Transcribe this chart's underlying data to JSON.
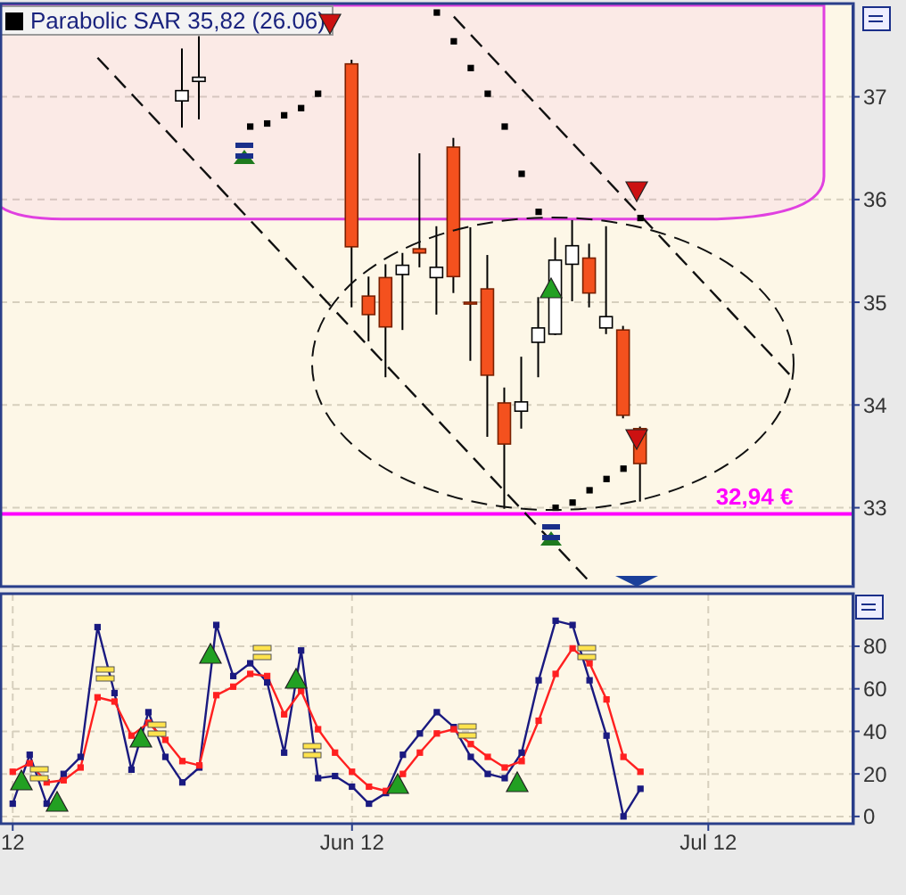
{
  "chart_data": [
    {
      "type": "candlestick",
      "categories": [
        null,
        null,
        null,
        null,
        null,
        null,
        null,
        null,
        null,
        null,
        null,
        null,
        null,
        null,
        null,
        null,
        null,
        null,
        null,
        null,
        null,
        null,
        null,
        null,
        null,
        null,
        null,
        null,
        null,
        null,
        null,
        null,
        null,
        null,
        null,
        null,
        null,
        null,
        null,
        null,
        null,
        null,
        null,
        null,
        null,
        null,
        null,
        null,
        null,
        null
      ],
      "ohlc": [
        null,
        null,
        null,
        null,
        null,
        null,
        null,
        null,
        null,
        null,
        [
          36.96,
          37.47,
          36.7,
          37.06
        ],
        [
          37.15,
          37.59,
          36.78,
          37.19
        ],
        null,
        null,
        null,
        null,
        null,
        null,
        null,
        null,
        [
          37.32,
          37.36,
          34.95,
          35.54
        ],
        [
          35.06,
          35.25,
          34.62,
          34.88
        ],
        [
          35.24,
          35.37,
          34.27,
          34.76
        ],
        [
          35.27,
          35.48,
          34.73,
          35.36
        ],
        [
          35.52,
          36.45,
          35.34,
          35.48
        ],
        [
          35.24,
          35.74,
          34.88,
          35.34
        ],
        [
          36.51,
          36.6,
          35.09,
          35.25
        ],
        [
          35.0,
          35.73,
          34.43,
          35.0
        ],
        [
          35.13,
          35.46,
          33.69,
          34.29
        ],
        [
          34.02,
          34.17,
          32.99,
          33.62
        ],
        [
          33.94,
          34.47,
          33.77,
          34.03
        ],
        [
          34.61,
          35.05,
          34.27,
          34.75
        ],
        [
          34.69,
          35.63,
          34.68,
          35.41
        ],
        [
          35.37,
          35.8,
          35.01,
          35.55
        ],
        [
          35.43,
          35.57,
          34.95,
          35.09
        ],
        [
          34.75,
          35.74,
          34.69,
          34.86
        ],
        [
          34.73,
          34.77,
          33.87,
          33.9
        ],
        [
          33.77,
          33.79,
          33.06,
          33.43
        ],
        null,
        null,
        null,
        null,
        null,
        null,
        null,
        null,
        null,
        null,
        null,
        null
      ],
      "series": [
        {
          "name": "Parabolic SAR 35,82 (26.06)",
          "type": "scatter",
          "color": "#000000",
          "marker": "square",
          "values": [
            null,
            null,
            null,
            null,
            null,
            null,
            null,
            null,
            null,
            null,
            null,
            null,
            null,
            null,
            36.71,
            36.74,
            36.82,
            36.89,
            37.03,
            null,
            null,
            null,
            null,
            null,
            null,
            37.82,
            37.54,
            37.28,
            37.03,
            36.71,
            36.25,
            35.88,
            33.0,
            33.05,
            33.17,
            33.28,
            33.38,
            35.82,
            null,
            null,
            null,
            null,
            null,
            null,
            null,
            null,
            null,
            null,
            null,
            null
          ]
        },
        {
          "type": "line",
          "color": "#111111",
          "line_style": "dashed",
          "values": [
            null,
            null,
            null,
            null,
            null,
            37.38,
            null,
            null,
            null,
            null,
            null,
            null,
            null,
            null,
            null,
            null,
            null,
            null,
            null,
            null,
            null,
            null,
            null,
            null,
            null,
            null,
            null,
            null,
            null,
            null,
            null,
            null,
            null,
            null,
            32.28,
            null,
            null,
            null,
            null,
            null,
            null,
            null,
            null,
            null,
            null,
            null,
            null,
            null,
            null,
            null
          ]
        },
        {
          "type": "line",
          "color": "#111111",
          "line_style": "dashed",
          "values": [
            null,
            null,
            null,
            null,
            null,
            null,
            null,
            null,
            null,
            null,
            null,
            null,
            null,
            null,
            null,
            null,
            null,
            null,
            null,
            null,
            null,
            null,
            null,
            null,
            null,
            null,
            37.78,
            null,
            null,
            null,
            null,
            null,
            null,
            null,
            null,
            null,
            null,
            null,
            null,
            null,
            null,
            null,
            null,
            null,
            null,
            null,
            34.26,
            null,
            null,
            null
          ]
        }
      ],
      "bands": [
        {
          "axis": "y",
          "from": 35.81,
          "to": 37.89,
          "color": "#e040e0"
        }
      ],
      "ylim": [
        32.25,
        37.89
      ],
      "yticks": [
        33,
        34,
        35,
        36,
        37
      ],
      "tick_labels": "y",
      "grid": "y",
      "legend": "top left",
      "ref_lines": [
        {
          "axis": "y",
          "value": 32.94,
          "label": "32,94 €",
          "color": "#ff00ff"
        }
      ]
    },
    {
      "type": "line",
      "categories": [
        "12",
        null,
        null,
        null,
        null,
        null,
        null,
        null,
        null,
        null,
        null,
        null,
        null,
        null,
        null,
        null,
        null,
        null,
        null,
        null,
        "Jun 12",
        null,
        null,
        null,
        null,
        null,
        null,
        null,
        null,
        null,
        null,
        null,
        null,
        null,
        null,
        null,
        null,
        null,
        null,
        null,
        null,
        "Jul 12",
        null,
        null,
        null,
        null,
        null,
        null,
        null,
        null
      ],
      "series": [
        {
          "color": "#1a1a80",
          "values": [
            6,
            29,
            6,
            20,
            28,
            89,
            58,
            22,
            49,
            28,
            16,
            23,
            90,
            66,
            72,
            63,
            30,
            78,
            18,
            19,
            14,
            6,
            11,
            29,
            39,
            49,
            42,
            28,
            20,
            18,
            30,
            64,
            92,
            90,
            64,
            38,
            0,
            13,
            null,
            null,
            null,
            null,
            null,
            null,
            null,
            null,
            null,
            null,
            null,
            null
          ]
        },
        {
          "color": "#ff2020",
          "values": [
            21,
            25,
            16,
            17,
            23,
            56,
            54,
            38,
            44,
            36,
            26,
            24,
            57,
            61,
            67,
            66,
            48,
            59,
            41,
            30,
            21,
            14,
            12,
            20,
            30,
            39,
            41,
            34,
            28,
            23,
            26,
            45,
            67,
            79,
            72,
            55,
            28,
            21,
            null,
            null,
            null,
            null,
            null,
            null,
            null,
            null,
            null,
            null,
            null,
            null
          ]
        }
      ],
      "ylim": [
        -3.4,
        104.7
      ],
      "yticks": [
        0,
        20,
        40,
        60,
        80
      ],
      "grid": true,
      "marker": "square"
    }
  ]
}
